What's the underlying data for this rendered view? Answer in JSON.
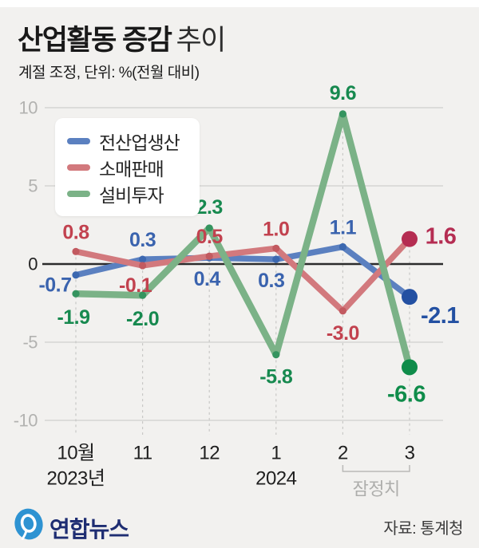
{
  "header": {
    "title_bold": "산업활동 증감",
    "title_light": "추이",
    "subtitle": "계절 조정, 단위: %(전월 대비)"
  },
  "legend": {
    "items": [
      {
        "label": "전산업생산",
        "color": "#5b80c0"
      },
      {
        "label": "소매판매",
        "color": "#d2797d"
      },
      {
        "label": "설비투자",
        "color": "#7bb287"
      }
    ]
  },
  "chart_data": {
    "type": "line",
    "categories": [
      "10월",
      "11",
      "12",
      "1",
      "2",
      "3"
    ],
    "series": [
      {
        "name": "전산업생산",
        "values": [
          -0.7,
          0.3,
          0.4,
          0.3,
          1.1,
          -2.1
        ],
        "line_color": "#5b80c0",
        "dot_color": "#3c68b0",
        "label_color": "#3a63ae",
        "final_color": "#2350a2",
        "label_offsets": [
          [
            -26,
            13
          ],
          [
            0,
            -24
          ],
          [
            -3,
            27
          ],
          [
            -6,
            27
          ],
          [
            0,
            -24
          ],
          [
            38,
            24
          ]
        ]
      },
      {
        "name": "소매판매",
        "values": [
          0.8,
          -0.1,
          0.5,
          1.0,
          -3.0,
          1.6
        ],
        "line_color": "#d2797d",
        "dot_color": "#c25a60",
        "label_color": "#c2424f",
        "final_color": "#b52d52",
        "label_offsets": [
          [
            0,
            -24
          ],
          [
            -9,
            25
          ],
          [
            0,
            -24
          ],
          [
            0,
            -24
          ],
          [
            0,
            28
          ],
          [
            39,
            -3
          ]
        ]
      },
      {
        "name": "설비투자",
        "values": [
          -1.9,
          -2.0,
          2.3,
          -5.8,
          9.6,
          -6.6
        ],
        "line_color": "#7bb287",
        "dot_color": "#35945f",
        "label_color": "#17894f",
        "final_color": "#0f8c4a",
        "label_offsets": [
          [
            -3,
            30
          ],
          [
            0,
            30
          ],
          [
            0,
            -26
          ],
          [
            0,
            28
          ],
          [
            0,
            -26
          ],
          [
            -4,
            34
          ]
        ]
      }
    ],
    "ylim": [
      -10,
      10
    ],
    "yticks": [
      10,
      5,
      0,
      -5,
      -10
    ],
    "xlabel": "",
    "ylabel": "",
    "grid": true,
    "legend_position": "top-left",
    "year_labels": [
      {
        "text": "2023년",
        "category_index": 0
      },
      {
        "text": "2024",
        "category_index": 3
      }
    ],
    "provisional": {
      "label": "잠정치",
      "from_index": 4,
      "to_index": 5
    }
  },
  "footer": {
    "brand": "연합뉴스",
    "source": "자료: 통계청"
  },
  "colors": {
    "background": "#f2f1ef",
    "grid": "#dcdcda",
    "zero_line": "#2b2b2b",
    "tick_text": "#b2b2b0",
    "axis_text": "#1f1f1f",
    "guide": "#c8c8c6",
    "muted": "#aeaeac",
    "brand_blue": "#1e2d72",
    "logo_blue": "#2e93d2"
  }
}
